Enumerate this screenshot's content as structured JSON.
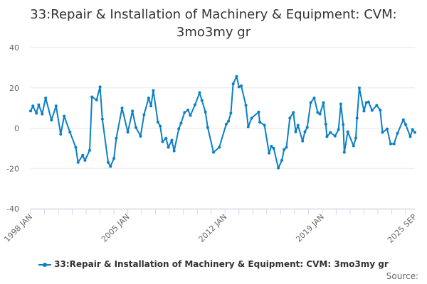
{
  "chart_data": {
    "type": "line",
    "title": "33:Repair & Installation of Machinery & Equipment: CVM: 3mo3my gr",
    "xlabel": "",
    "ylabel": "",
    "ylim": [
      -40,
      40
    ],
    "yticks": [
      "40",
      "20",
      "0",
      "-20",
      "-40"
    ],
    "xlim": [
      "1998-01",
      "2025-09"
    ],
    "xticks": [
      {
        "date": "1998-01",
        "label": "1998 JAN"
      },
      {
        "date": "2005-01",
        "label": "2005 JAN"
      },
      {
        "date": "2012-01",
        "label": "2012 JAN"
      },
      {
        "date": "2019-01",
        "label": "2019 JAN"
      },
      {
        "date": "2025-09",
        "label": "2025 SEP"
      }
    ],
    "grid": true,
    "legend_position": "bottom",
    "color": "#0c7fc6",
    "series": [
      {
        "name": "33:Repair & Installation of Machinery & Equipment: CVM: 3mo3my gr",
        "points": [
          [
            "1998-01",
            8.5
          ],
          [
            "1998-03",
            11
          ],
          [
            "1998-06",
            7.4
          ],
          [
            "1998-08",
            11.6
          ],
          [
            "1998-11",
            7
          ],
          [
            "1999-02",
            15
          ],
          [
            "1999-07",
            4
          ],
          [
            "1999-11",
            11
          ],
          [
            "2000-03",
            -3
          ],
          [
            "2000-06",
            6
          ],
          [
            "2000-11",
            -2
          ],
          [
            "2001-04",
            -9.5
          ],
          [
            "2001-06",
            -17
          ],
          [
            "2001-10",
            -13.5
          ],
          [
            "2001-12",
            -16
          ],
          [
            "2002-04",
            -11
          ],
          [
            "2002-06",
            15.5
          ],
          [
            "2002-10",
            14
          ],
          [
            "2003-01",
            20.5
          ],
          [
            "2003-03",
            4.5
          ],
          [
            "2003-08",
            -17
          ],
          [
            "2003-10",
            -19
          ],
          [
            "2004-01",
            -15
          ],
          [
            "2004-03",
            -5
          ],
          [
            "2004-08",
            10
          ],
          [
            "2005-01",
            -2
          ],
          [
            "2005-05",
            8.5
          ],
          [
            "2005-08",
            0.3
          ],
          [
            "2005-12",
            -4
          ],
          [
            "2006-03",
            6.7
          ],
          [
            "2006-07",
            15
          ],
          [
            "2006-09",
            11
          ],
          [
            "2006-11",
            18.7
          ],
          [
            "2007-03",
            3
          ],
          [
            "2007-05",
            1
          ],
          [
            "2007-07",
            -6.7
          ],
          [
            "2007-10",
            -5
          ],
          [
            "2007-12",
            -9.5
          ],
          [
            "2008-03",
            -6
          ],
          [
            "2008-05",
            -11.3
          ],
          [
            "2008-09",
            -0.3
          ],
          [
            "2008-11",
            2.5
          ],
          [
            "2009-02",
            7.8
          ],
          [
            "2009-05",
            9
          ],
          [
            "2009-07",
            6.3
          ],
          [
            "2009-11",
            11.6
          ],
          [
            "2010-03",
            17.6
          ],
          [
            "2010-05",
            13.8
          ],
          [
            "2010-08",
            8
          ],
          [
            "2010-10",
            0.3
          ],
          [
            "2011-03",
            -12
          ],
          [
            "2011-08",
            -9.5
          ],
          [
            "2012-02",
            2
          ],
          [
            "2012-04",
            3.5
          ],
          [
            "2012-06",
            7.4
          ],
          [
            "2012-08",
            22
          ],
          [
            "2012-11",
            25.7
          ],
          [
            "2013-01",
            20.5
          ],
          [
            "2013-03",
            21
          ],
          [
            "2013-07",
            11.3
          ],
          [
            "2013-09",
            0.7
          ],
          [
            "2013-12",
            5
          ],
          [
            "2014-06",
            8
          ],
          [
            "2014-07",
            3
          ],
          [
            "2014-11",
            1.5
          ],
          [
            "2015-03",
            -12.4
          ],
          [
            "2015-05",
            -9
          ],
          [
            "2015-07",
            -10
          ],
          [
            "2015-11",
            -19.8
          ],
          [
            "2016-02",
            -16
          ],
          [
            "2016-04",
            -10.6
          ],
          [
            "2016-06",
            -9.5
          ],
          [
            "2016-09",
            5
          ],
          [
            "2016-12",
            7.8
          ],
          [
            "2017-02",
            -1.8
          ],
          [
            "2017-04",
            1.4
          ],
          [
            "2017-08",
            -6.4
          ],
          [
            "2017-10",
            -1.8
          ],
          [
            "2017-12",
            0.4
          ],
          [
            "2018-03",
            12.7
          ],
          [
            "2018-06",
            15
          ],
          [
            "2018-09",
            7.8
          ],
          [
            "2018-11",
            7
          ],
          [
            "2019-02",
            12.7
          ],
          [
            "2019-04",
            2
          ],
          [
            "2019-05",
            -4.2
          ],
          [
            "2019-08",
            -2.1
          ],
          [
            "2019-12",
            -3.9
          ],
          [
            "2020-03",
            -0.7
          ],
          [
            "2020-05",
            12
          ],
          [
            "2020-07",
            1.8
          ],
          [
            "2020-08",
            -12
          ],
          [
            "2020-11",
            -1.8
          ],
          [
            "2021-04",
            -8.8
          ],
          [
            "2021-06",
            -4.9
          ],
          [
            "2021-07",
            5
          ],
          [
            "2021-09",
            20
          ],
          [
            "2022-01",
            8.5
          ],
          [
            "2022-03",
            12.7
          ],
          [
            "2022-05",
            13
          ],
          [
            "2022-08",
            8.8
          ],
          [
            "2022-12",
            11.3
          ],
          [
            "2023-03",
            9
          ],
          [
            "2023-05",
            -2.1
          ],
          [
            "2023-09",
            -0.4
          ],
          [
            "2023-12",
            -7.8
          ],
          [
            "2024-03",
            -7.8
          ],
          [
            "2024-06",
            -2.5
          ],
          [
            "2024-11",
            4.2
          ],
          [
            "2025-01",
            1.8
          ],
          [
            "2025-05",
            -4.2
          ],
          [
            "2025-07",
            -0.7
          ],
          [
            "2025-09",
            -2.1
          ]
        ]
      }
    ],
    "source_label": "Source:"
  }
}
